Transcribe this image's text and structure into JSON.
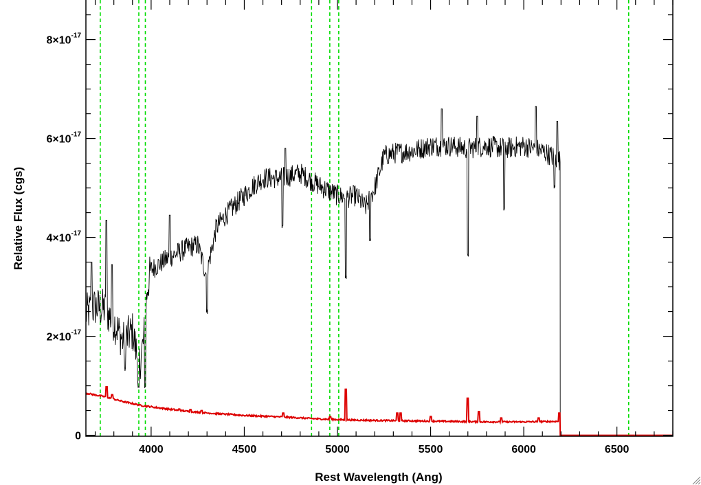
{
  "chart_data": {
    "type": "line",
    "xlabel": "Rest Wavelength (Ang)",
    "ylabel": "Relative Flux (cgs)",
    "xlim": [
      3650,
      6800
    ],
    "ylim": [
      -2e-19,
      8.8e-17
    ],
    "x_ticks": [
      4000,
      4500,
      5000,
      5500,
      6000,
      6500
    ],
    "x_tick_labels": [
      "4000",
      "4500",
      "5000",
      "5500",
      "6000",
      "6500"
    ],
    "y_ticks": [
      0,
      2e-17,
      4e-17,
      6e-17,
      8e-17
    ],
    "y_tick_labels": [
      {
        "mantissa": "0",
        "exponent": ""
      },
      {
        "mantissa": "2×10",
        "exponent": "-17"
      },
      {
        "mantissa": "4×10",
        "exponent": "-17"
      },
      {
        "mantissa": "6×10",
        "exponent": "-17"
      },
      {
        "mantissa": "8×10",
        "exponent": "-17"
      }
    ],
    "grid": false,
    "legend": "none",
    "colors": {
      "spectrum": "#000000",
      "error": "#dd0000",
      "lines": "#00dd00"
    },
    "vertical_lines_x": [
      3727,
      3934,
      3969,
      4861,
      4959,
      5007,
      6563
    ],
    "series": [
      {
        "style": "flux",
        "color": "#000000",
        "anchors": [
          [
            3650,
            2.45
          ],
          [
            3700,
            2.6
          ],
          [
            3750,
            2.55
          ],
          [
            3800,
            2.3
          ],
          [
            3850,
            1.9
          ],
          [
            3900,
            2.1
          ],
          [
            3935,
            1.4
          ],
          [
            3960,
            1.9
          ],
          [
            3980,
            3.0
          ],
          [
            4000,
            3.35
          ],
          [
            4100,
            3.6
          ],
          [
            4200,
            3.8
          ],
          [
            4250,
            3.85
          ],
          [
            4300,
            3.2
          ],
          [
            4310,
            3.5
          ],
          [
            4350,
            4.2
          ],
          [
            4400,
            4.45
          ],
          [
            4500,
            4.85
          ],
          [
            4550,
            5.05
          ],
          [
            4600,
            5.2
          ],
          [
            4700,
            5.2
          ],
          [
            4800,
            5.3
          ],
          [
            4900,
            5.05
          ],
          [
            5000,
            4.85
          ],
          [
            5050,
            4.8
          ],
          [
            5100,
            4.85
          ],
          [
            5150,
            4.6
          ],
          [
            5200,
            5.0
          ],
          [
            5250,
            5.65
          ],
          [
            5300,
            5.7
          ],
          [
            5400,
            5.75
          ],
          [
            5500,
            5.85
          ],
          [
            5600,
            5.85
          ],
          [
            5700,
            5.8
          ],
          [
            5800,
            5.85
          ],
          [
            5900,
            5.8
          ],
          [
            6000,
            5.85
          ],
          [
            6100,
            5.75
          ],
          [
            6195,
            5.55
          ]
        ],
        "dips": [
          [
            3860,
            1.35
          ],
          [
            3933,
            0.95
          ],
          [
            3968,
            1.0
          ],
          [
            4300,
            2.5
          ],
          [
            4705,
            4.2
          ],
          [
            5045,
            3.2
          ],
          [
            5175,
            3.95
          ],
          [
            5700,
            3.65
          ],
          [
            5895,
            4.55
          ],
          [
            6165,
            5.0
          ]
        ],
        "peaks": [
          [
            3680,
            3.5
          ],
          [
            3760,
            4.35
          ],
          [
            3790,
            3.45
          ],
          [
            4100,
            4.45
          ],
          [
            4720,
            5.8
          ],
          [
            5560,
            6.6
          ],
          [
            5750,
            6.45
          ],
          [
            6065,
            6.65
          ],
          [
            6180,
            6.35
          ]
        ],
        "cutoff_x": 6195,
        "noise": 0.22
      },
      {
        "style": "error",
        "color": "#dd0000",
        "anchors": [
          [
            3650,
            0.85
          ],
          [
            3750,
            0.78
          ],
          [
            3850,
            0.68
          ],
          [
            3950,
            0.6
          ],
          [
            4050,
            0.55
          ],
          [
            4150,
            0.5
          ],
          [
            4300,
            0.45
          ],
          [
            4500,
            0.4
          ],
          [
            4700,
            0.37
          ],
          [
            4900,
            0.33
          ],
          [
            5050,
            0.31
          ],
          [
            5200,
            0.3
          ],
          [
            5400,
            0.29
          ],
          [
            5600,
            0.28
          ],
          [
            5800,
            0.27
          ],
          [
            6000,
            0.27
          ],
          [
            6190,
            0.28
          ]
        ],
        "spikes": [
          [
            3760,
            0.98
          ],
          [
            3790,
            0.82
          ],
          [
            4120,
            0.53
          ],
          [
            4150,
            0.53
          ],
          [
            4210,
            0.52
          ],
          [
            4270,
            0.5
          ],
          [
            4710,
            0.45
          ],
          [
            4960,
            0.38
          ],
          [
            5045,
            0.93
          ],
          [
            5320,
            0.45
          ],
          [
            5340,
            0.45
          ],
          [
            5500,
            0.38
          ],
          [
            5700,
            0.75
          ],
          [
            5760,
            0.48
          ],
          [
            5880,
            0.35
          ],
          [
            6080,
            0.35
          ],
          [
            6190,
            0.45
          ]
        ],
        "cutoff_x": 6195,
        "tail_value": 0.0
      }
    ]
  }
}
